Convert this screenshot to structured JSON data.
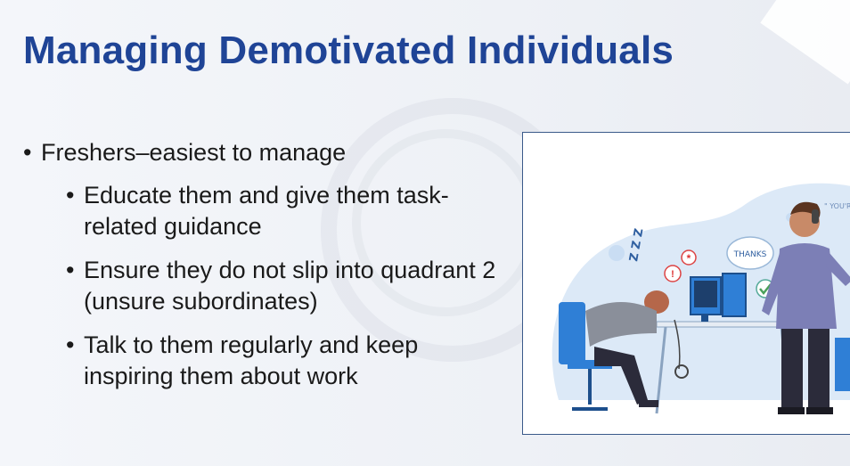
{
  "slide": {
    "title": "Managing Demotivated Individuals",
    "bullets": [
      {
        "text": "Freshers–easiest to manage",
        "sub": [
          "Educate them and give them task-related guidance",
          "Ensure they do not slip into quadrant 2 (unsure subordinates)",
          "Talk to them regularly and keep inspiring them about work"
        ]
      }
    ]
  },
  "illustration": {
    "bubble_thanks": "THANKS",
    "bubble_welcome": "\" YOU'RE WELCOME",
    "snore": "Z Z Z",
    "colors": {
      "accent_blue": "#2f7fd6",
      "light_blue": "#d6e8f8",
      "shirt_purple": "#7c7fb6",
      "dark": "#2b2b3a"
    }
  }
}
